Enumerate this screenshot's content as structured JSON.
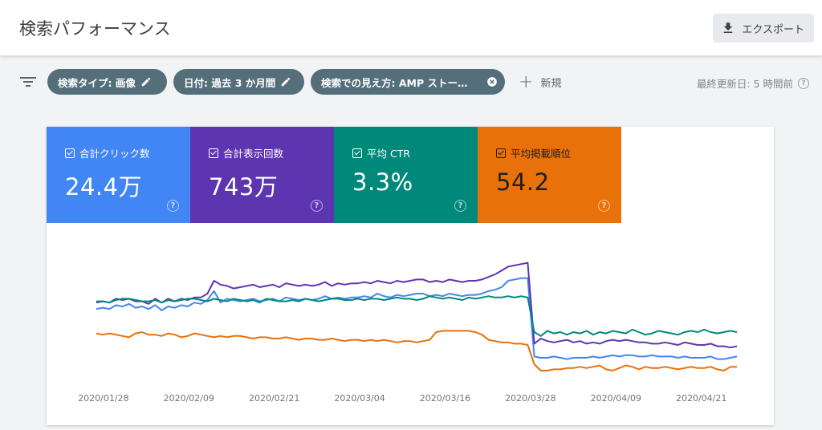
{
  "header": {
    "title": "検索パフォーマンス",
    "export_label": "エクスポート"
  },
  "filters": {
    "chips": [
      {
        "label": "検索タイプ: 画像",
        "icon": "pencil-icon"
      },
      {
        "label": "日付: 過去 3 か月間",
        "icon": "pencil-icon"
      },
      {
        "label": "検索での見え方: AMP ストー…",
        "icon": "close-circle-icon"
      }
    ],
    "new_label": "新規",
    "last_updated": "最終更新日: 5 時間前"
  },
  "metrics": {
    "clicks": {
      "label": "合計クリック数",
      "value": "24.4万",
      "color": "#4285f4"
    },
    "impressions": {
      "label": "合計表示回数",
      "value": "743万",
      "color": "#5e35b1"
    },
    "ctr": {
      "label": "平均 CTR",
      "value": "3.3%",
      "color": "#00897b"
    },
    "position": {
      "label": "平均掲載順位",
      "value": "54.2",
      "color": "#e8710a"
    }
  },
  "chart_data": {
    "type": "line",
    "x_tick_labels": [
      "2020/01/28",
      "2020/02/09",
      "2020/02/21",
      "2020/03/04",
      "2020/03/16",
      "2020/03/28",
      "2020/04/09",
      "2020/04/21"
    ],
    "x_start": "2020/01/27",
    "x_end": "2020/04/26",
    "y_range": [
      0,
      100
    ],
    "y_axis_note": "relative scale (no y-axis labels shown)",
    "grid": false,
    "series": [
      {
        "name": "合計クリック数",
        "color": "#4285f4",
        "values": [
          58,
          59,
          58,
          61,
          60,
          62,
          59,
          60,
          58,
          61,
          57,
          60,
          59,
          61,
          60,
          63,
          62,
          65,
          72,
          63,
          66,
          65,
          64,
          65,
          66,
          64,
          65,
          66,
          64,
          67,
          66,
          65,
          66,
          65,
          66,
          68,
          66,
          67,
          66,
          67,
          67,
          68,
          67,
          70,
          68,
          67,
          69,
          68,
          69,
          70,
          70,
          68,
          69,
          68,
          70,
          69,
          68,
          69,
          69,
          70,
          72,
          73,
          75,
          80,
          81,
          82,
          82,
          21,
          20,
          20,
          21,
          20,
          19,
          20,
          20,
          20,
          21,
          20,
          21,
          22,
          21,
          22,
          22,
          21,
          21,
          22,
          21,
          21,
          21,
          20,
          21,
          20,
          20,
          20,
          21,
          19,
          19,
          20,
          21
        ]
      },
      {
        "name": "合計表示回数",
        "color": "#5e35b1",
        "values": [
          63,
          64,
          63,
          66,
          65,
          66,
          64,
          64,
          62,
          66,
          63,
          66,
          64,
          66,
          65,
          67,
          67,
          70,
          80,
          77,
          76,
          74,
          75,
          76,
          77,
          75,
          76,
          77,
          75,
          78,
          77,
          76,
          77,
          76,
          77,
          79,
          76,
          78,
          77,
          78,
          78,
          79,
          78,
          80,
          79,
          78,
          80,
          79,
          80,
          81,
          81,
          79,
          80,
          79,
          81,
          80,
          79,
          80,
          80,
          81,
          83,
          85,
          88,
          91,
          92,
          93,
          94,
          31,
          35,
          33,
          32,
          33,
          34,
          32,
          33,
          31,
          32,
          31,
          33,
          34,
          33,
          34,
          33,
          32,
          32,
          31,
          31,
          32,
          31,
          30,
          32,
          31,
          30,
          30,
          31,
          29,
          29,
          28,
          29
        ]
      },
      {
        "name": "平均 CTR",
        "color": "#00897b",
        "values": [
          64,
          64,
          63,
          65,
          66,
          66,
          65,
          64,
          64,
          65,
          63,
          65,
          64,
          65,
          66,
          66,
          65,
          64,
          66,
          65,
          64,
          66,
          65,
          64,
          65,
          63,
          66,
          65,
          64,
          64,
          65,
          64,
          66,
          65,
          64,
          65,
          66,
          66,
          65,
          65,
          66,
          65,
          66,
          66,
          65,
          66,
          67,
          66,
          66,
          65,
          66,
          68,
          67,
          66,
          67,
          66,
          65,
          67,
          66,
          67,
          68,
          67,
          67,
          68,
          67,
          68,
          67,
          40,
          37,
          41,
          39,
          40,
          38,
          40,
          39,
          41,
          38,
          40,
          39,
          41,
          40,
          39,
          42,
          40,
          38,
          39,
          41,
          40,
          39,
          38,
          40,
          41,
          40,
          42,
          40,
          39,
          40,
          41,
          40
        ]
      },
      {
        "name": "平均掲載順位",
        "color": "#e8710a",
        "values": [
          39,
          38,
          39,
          38,
          37,
          36,
          39,
          40,
          38,
          38,
          37,
          39,
          38,
          36,
          37,
          39,
          38,
          37,
          36,
          37,
          36,
          37,
          37,
          36,
          35,
          36,
          36,
          35,
          35,
          36,
          35,
          34,
          35,
          35,
          34,
          34,
          35,
          34,
          33,
          34,
          34,
          33,
          34,
          33,
          34,
          33,
          32,
          33,
          33,
          32,
          33,
          34,
          40,
          41,
          41,
          41,
          41,
          41,
          40,
          38,
          34,
          33,
          32,
          32,
          31,
          31,
          30,
          15,
          10,
          10,
          11,
          11,
          12,
          12,
          13,
          12,
          13,
          14,
          11,
          10,
          12,
          14,
          13,
          11,
          13,
          12,
          12,
          13,
          12,
          11,
          12,
          13,
          12,
          12,
          13,
          11,
          10,
          13,
          13
        ]
      }
    ]
  }
}
